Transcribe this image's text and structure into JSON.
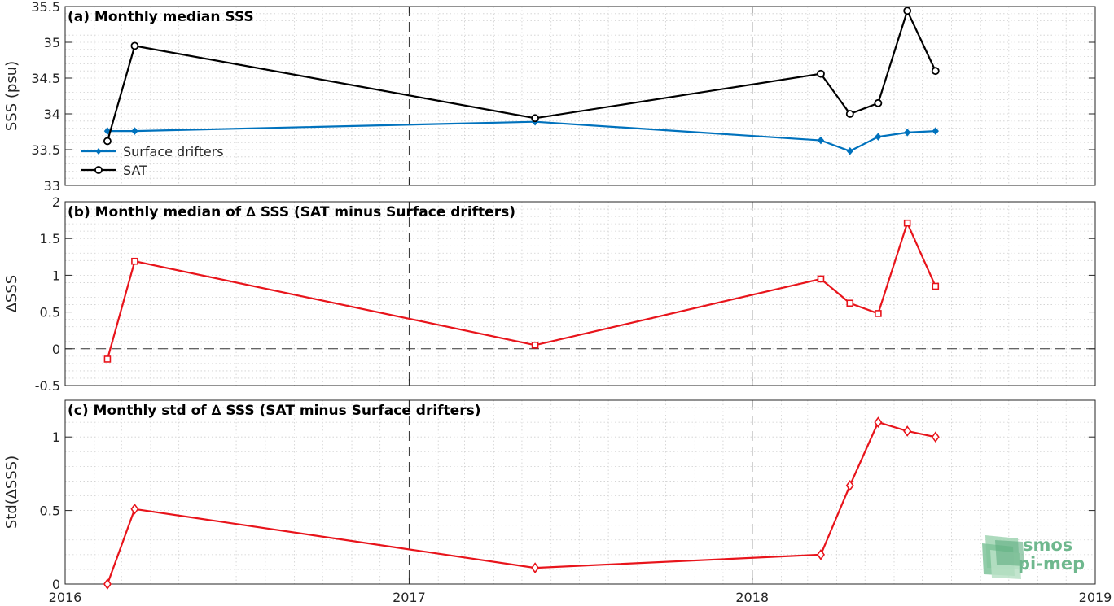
{
  "colors": {
    "surface_drifters": "#0072BD",
    "sat": "#000000",
    "delta": "#E8141B",
    "logo": "#6fb88e"
  },
  "logo": {
    "line1": "smos",
    "line2": "pi-mep",
    "icon": "stacked-layers-logo-icon"
  },
  "x_axis": {
    "type": "date",
    "range": [
      "2016-01-01",
      "2019-01-01"
    ],
    "ticks": [
      {
        "date": "2016-01-01",
        "label": "2016"
      },
      {
        "date": "2017-01-01",
        "label": "2017"
      },
      {
        "date": "2018-01-01",
        "label": "2018"
      },
      {
        "date": "2019-01-01",
        "label": "2019"
      }
    ],
    "year_divider_lines": [
      "2017-01-01",
      "2018-01-01"
    ]
  },
  "chart_data": [
    {
      "type": "line",
      "title": "(a) Monthly median SSS",
      "ylabel": "SSS (psu)",
      "ylim": [
        33,
        35.5
      ],
      "yticks": [
        "33",
        "33.5",
        "34",
        "34.5",
        "35",
        "35.5"
      ],
      "ytick_values": [
        33,
        33.5,
        34,
        34.5,
        35,
        35.5
      ],
      "grid": true,
      "legend": "lower-left",
      "series": [
        {
          "name": "Surface drifters",
          "color": "#0072BD",
          "marker": "dot",
          "x": [
            "2016-02-15",
            "2016-03-15",
            "2017-05-15",
            "2018-03-15",
            "2018-04-15",
            "2018-05-15",
            "2018-06-15",
            "2018-07-15"
          ],
          "y": [
            33.76,
            33.76,
            33.89,
            33.63,
            33.48,
            33.68,
            33.74,
            33.76
          ]
        },
        {
          "name": "SAT",
          "color": "#000000",
          "marker": "circle",
          "x": [
            "2016-02-15",
            "2016-03-15",
            "2017-05-15",
            "2018-03-15",
            "2018-04-15",
            "2018-05-15",
            "2018-06-15",
            "2018-07-15"
          ],
          "y": [
            33.62,
            34.95,
            33.94,
            34.56,
            34.0,
            34.15,
            35.44,
            34.6
          ]
        }
      ]
    },
    {
      "type": "line",
      "title": "(b) Monthly median of ∆ SSS (SAT minus Surface drifters)",
      "ylabel": "∆SSS",
      "ylim": [
        -0.5,
        2
      ],
      "yticks": [
        "-0.5",
        "0",
        "0.5",
        "1",
        "1.5",
        "2"
      ],
      "ytick_values": [
        -0.5,
        0,
        0.5,
        1,
        1.5,
        2
      ],
      "grid": true,
      "zero_line": true,
      "series": [
        {
          "color": "#E8141B",
          "marker": "square",
          "x": [
            "2016-02-15",
            "2016-03-15",
            "2017-05-15",
            "2018-03-15",
            "2018-04-15",
            "2018-05-15",
            "2018-06-15",
            "2018-07-15"
          ],
          "y": [
            -0.14,
            1.19,
            0.05,
            0.95,
            0.62,
            0.48,
            1.71,
            0.85
          ]
        }
      ]
    },
    {
      "type": "line",
      "title": "(c) Monthly std of ∆ SSS (SAT minus Surface drifters)",
      "ylabel": "Std(∆SSS)",
      "ylim": [
        0,
        1.25
      ],
      "yticks": [
        "0",
        "0.5",
        "1"
      ],
      "ytick_values": [
        0,
        0.5,
        1
      ],
      "grid": true,
      "series": [
        {
          "color": "#E8141B",
          "marker": "diamond",
          "x": [
            "2016-02-15",
            "2016-03-15",
            "2017-05-15",
            "2018-03-15",
            "2018-04-15",
            "2018-05-15",
            "2018-06-15",
            "2018-07-15"
          ],
          "y": [
            0.0,
            0.51,
            0.11,
            0.2,
            0.67,
            1.1,
            1.04,
            1.0
          ]
        }
      ]
    }
  ]
}
